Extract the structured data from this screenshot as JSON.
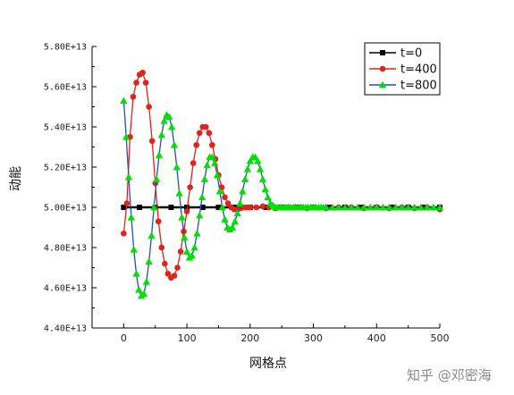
{
  "chart_data": {
    "type": "line",
    "xlabel": "网格点",
    "ylabel": "动能",
    "xlim": [
      -50,
      500
    ],
    "ylim": [
      44000000000000.0,
      58000000000000.0
    ],
    "x_ticks": [
      0,
      100,
      200,
      300,
      400,
      500
    ],
    "y_ticks": [
      44000000000000.0,
      46000000000000.0,
      48000000000000.0,
      50000000000000.0,
      52000000000000.0,
      54000000000000.0,
      56000000000000.0,
      58000000000000.0
    ],
    "y_tick_labels": [
      "4.40E+13",
      "4.60E+13",
      "4.80E+13",
      "5.00E+13",
      "5.20E+13",
      "5.40E+13",
      "5.60E+13",
      "5.80E+13"
    ],
    "legend_position": "top-right",
    "grid": false,
    "series": [
      {
        "name": "t=0",
        "color": "#000000",
        "marker": "square",
        "x": [
          0,
          25,
          50,
          75,
          100,
          125,
          150,
          175,
          200,
          225,
          250,
          275,
          300,
          325,
          350,
          375,
          400,
          425,
          450,
          475,
          500
        ],
        "y": [
          50000000000000.0,
          50000000000000.0,
          50000000000000.0,
          50000000000000.0,
          50000000000000.0,
          50000000000000.0,
          50000000000000.0,
          50000000000000.0,
          50000000000000.0,
          50000000000000.0,
          50000000000000.0,
          50000000000000.0,
          50000000000000.0,
          50000000000000.0,
          50000000000000.0,
          50000000000000.0,
          50000000000000.0,
          50000000000000.0,
          50000000000000.0,
          50000000000000.0,
          50000000000000.0
        ]
      },
      {
        "name": "t=400",
        "color": "#e0231b",
        "marker": "circle",
        "x": [
          0,
          5,
          10,
          15,
          20,
          25,
          30,
          35,
          40,
          45,
          50,
          55,
          60,
          65,
          70,
          75,
          80,
          85,
          90,
          95,
          100,
          105,
          110,
          115,
          120,
          125,
          130,
          135,
          140,
          145,
          150,
          155,
          160,
          165,
          170,
          175,
          180,
          185,
          190,
          195,
          200,
          210,
          220,
          230,
          240,
          250,
          260,
          270,
          280,
          290,
          300,
          320,
          340,
          360,
          380,
          400,
          420,
          440,
          460,
          480,
          500
        ],
        "y": [
          48700000000000.0,
          50200000000000.0,
          53500000000000.0,
          55500000000000.0,
          56200000000000.0,
          56600000000000.0,
          56700000000000.0,
          56200000000000.0,
          55000000000000.0,
          53300000000000.0,
          51200000000000.0,
          49300000000000.0,
          48000000000000.0,
          47200000000000.0,
          46700000000000.0,
          46500000000000.0,
          46600000000000.0,
          47000000000000.0,
          47800000000000.0,
          48800000000000.0,
          49800000000000.0,
          51000000000000.0,
          52200000000000.0,
          53100000000000.0,
          53700000000000.0,
          54000000000000.0,
          54000000000000.0,
          53700000000000.0,
          53100000000000.0,
          52400000000000.0,
          51600000000000.0,
          51000000000000.0,
          50500000000000.0,
          50200000000000.0,
          50000000000000.0,
          49900000000000.0,
          49900000000000.0,
          49950000000000.0,
          50000000000000.0,
          50000000000000.0,
          50000000000000.0,
          50000000000000.0,
          50050000000000.0,
          50000000000000.0,
          49950000000000.0,
          50000000000000.0,
          50000000000000.0,
          50000000000000.0,
          50000000000000.0,
          49950000000000.0,
          50000000000000.0,
          49950000000000.0,
          50000000000000.0,
          50000000000000.0,
          49950000000000.0,
          50000000000000.0,
          49950000000000.0,
          50000000000000.0,
          49950000000000.0,
          50000000000000.0,
          49900000000000.0
        ]
      },
      {
        "name": "t=800",
        "color": "#00e000",
        "line_color": "#1f4fbf",
        "marker": "triangle",
        "x": [
          0,
          4,
          8,
          12,
          16,
          20,
          24,
          28,
          32,
          36,
          40,
          44,
          48,
          52,
          56,
          60,
          64,
          68,
          72,
          76,
          80,
          84,
          88,
          92,
          96,
          100,
          104,
          108,
          112,
          116,
          120,
          124,
          128,
          132,
          136,
          140,
          144,
          148,
          152,
          156,
          160,
          164,
          168,
          172,
          176,
          180,
          184,
          188,
          192,
          196,
          200,
          204,
          208,
          212,
          216,
          220,
          224,
          228,
          232,
          236,
          240,
          244,
          248,
          252,
          256,
          260,
          264,
          268,
          272,
          276,
          280,
          284,
          288,
          292,
          296,
          300,
          304,
          308,
          312,
          316,
          320,
          330,
          340,
          350,
          360,
          370,
          380,
          390,
          400,
          410,
          420,
          430,
          440,
          450,
          460,
          470,
          480,
          490,
          500
        ],
        "y": [
          55300000000000.0,
          53500000000000.0,
          51500000000000.0,
          49500000000000.0,
          47900000000000.0,
          46700000000000.0,
          45900000000000.0,
          45600000000000.0,
          45700000000000.0,
          46300000000000.0,
          47300000000000.0,
          48600000000000.0,
          50000000000000.0,
          51400000000000.0,
          52600000000000.0,
          53600000000000.0,
          54300000000000.0,
          54600000000000.0,
          54500000000000.0,
          54000000000000.0,
          53100000000000.0,
          52000000000000.0,
          50700000000000.0,
          49500000000000.0,
          48500000000000.0,
          47800000000000.0,
          47500000000000.0,
          47600000000000.0,
          48000000000000.0,
          48700000000000.0,
          49600000000000.0,
          50500000000000.0,
          51400000000000.0,
          52100000000000.0,
          52500000000000.0,
          52500000000000.0,
          52200000000000.0,
          51600000000000.0,
          50800000000000.0,
          50000000000000.0,
          49400000000000.0,
          49000000000000.0,
          48900000000000.0,
          49000000000000.0,
          49300000000000.0,
          49700000000000.0,
          50200000000000.0,
          50800000000000.0,
          51400000000000.0,
          51900000000000.0,
          52300000000000.0,
          52500000000000.0,
          52500000000000.0,
          52300000000000.0,
          51900000000000.0,
          51400000000000.0,
          50900000000000.0,
          50500000000000.0,
          50200000000000.0,
          50100000000000.0,
          50000000000000.0,
          50000000000000.0,
          50000000000000.0,
          50000000000000.0,
          50000000000000.0,
          50000000000000.0,
          50000000000000.0,
          50000000000000.0,
          50000000000000.0,
          50000000000000.0,
          50000000000000.0,
          50000000000000.0,
          50000000000000.0,
          50000000000000.0,
          50000000000000.0,
          50000000000000.0,
          50000000000000.0,
          50000000000000.0,
          50000000000000.0,
          50000000000000.0,
          50000000000000.0,
          50000000000000.0,
          50000000000000.0,
          50000000000000.0,
          50000000000000.0,
          50000000000000.0,
          50000000000000.0,
          50000000000000.0,
          50000000000000.0,
          50000000000000.0,
          50000000000000.0,
          50000000000000.0,
          50000000000000.0,
          50000000000000.0,
          50000000000000.0,
          50000000000000.0,
          50000000000000.0,
          50000000000000.0,
          50000000000000.0
        ]
      }
    ]
  },
  "watermark": "知乎 @邓密海"
}
